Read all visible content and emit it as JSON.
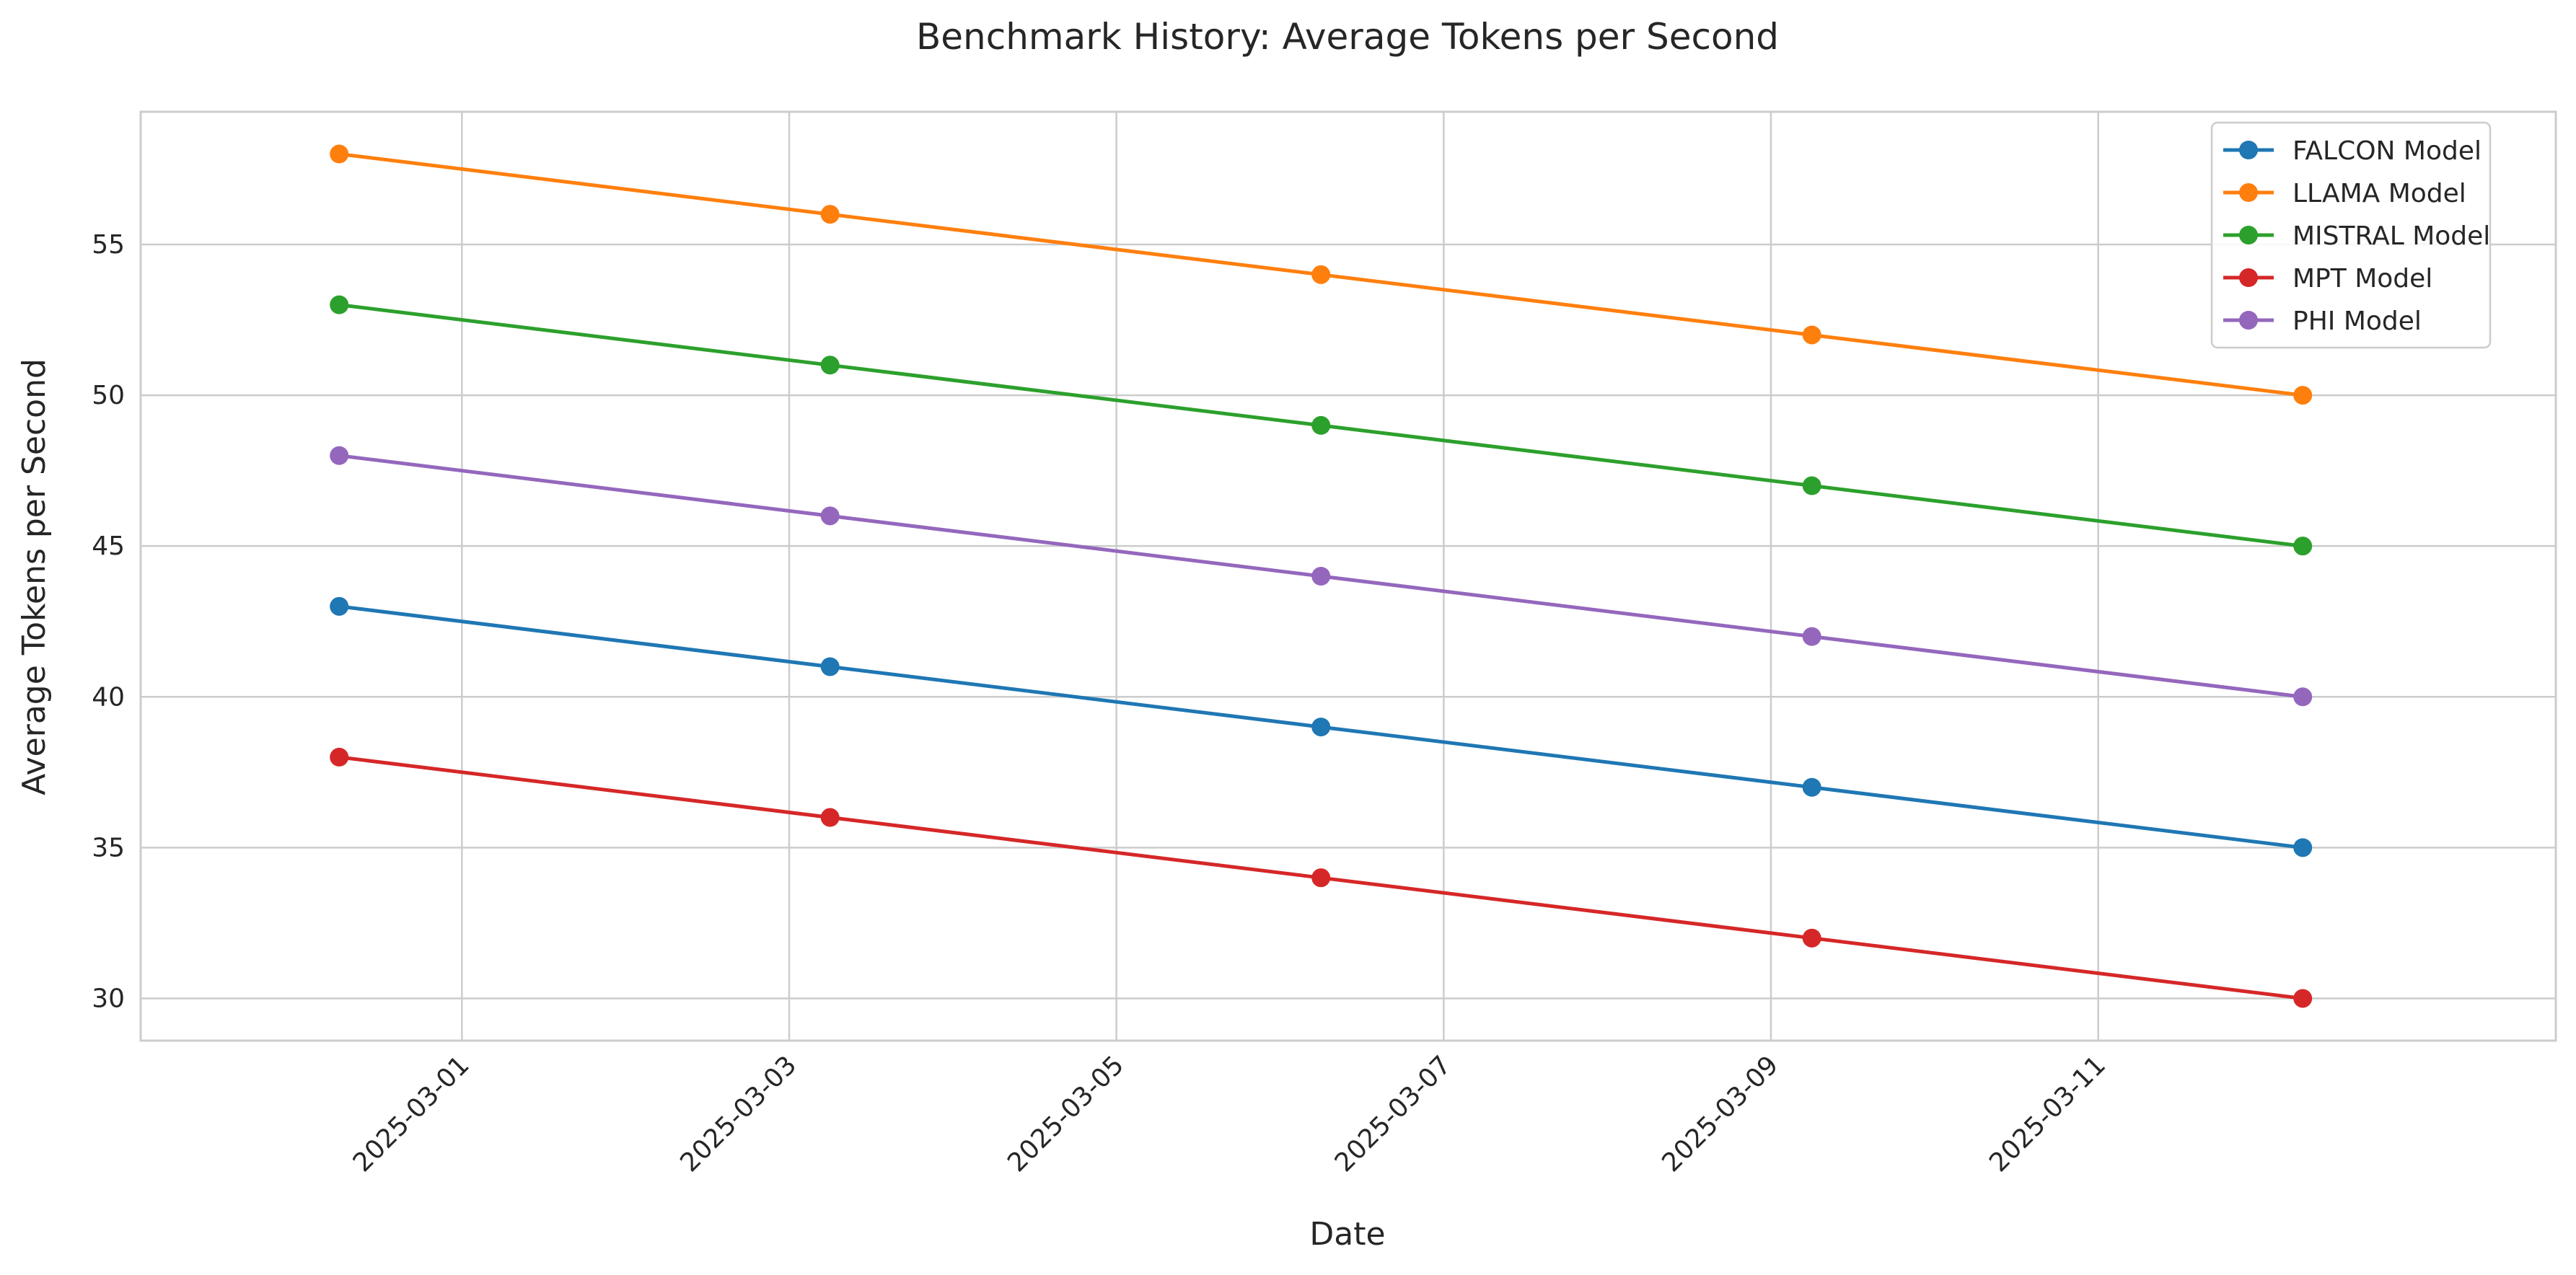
{
  "chart_data": {
    "type": "line",
    "title": "Benchmark History: Average Tokens per Second",
    "xlabel": "Date",
    "ylabel": "Average Tokens per Second",
    "x_scale": "date",
    "xlim": [
      "2025-02-27T00:53",
      "2025-03-13T19:07"
    ],
    "ylim": [
      28.6,
      59.4
    ],
    "x_ticks": [
      "2025-03-01",
      "2025-03-03",
      "2025-03-05",
      "2025-03-07",
      "2025-03-09",
      "2025-03-11"
    ],
    "y_ticks": [
      30,
      35,
      40,
      45,
      50,
      55
    ],
    "grid": true,
    "legend_position": "top-right",
    "x": [
      "2025-02-28T06:00",
      "2025-03-03T06:00",
      "2025-03-06T06:00",
      "2025-03-09T06:00",
      "2025-03-12T06:00"
    ],
    "series": [
      {
        "name": "FALCON Model",
        "color": "#1f77b4",
        "values": [
          43,
          41,
          39,
          37,
          35
        ]
      },
      {
        "name": "LLAMA Model",
        "color": "#ff7f0e",
        "values": [
          58,
          56,
          54,
          52,
          50
        ]
      },
      {
        "name": "MISTRAL Model",
        "color": "#2ca02c",
        "values": [
          53,
          51,
          49,
          47,
          45
        ]
      },
      {
        "name": "MPT Model",
        "color": "#d62728",
        "values": [
          38,
          36,
          34,
          32,
          30
        ]
      },
      {
        "name": "PHI Model",
        "color": "#9467bd",
        "values": [
          48,
          46,
          44,
          42,
          40
        ]
      }
    ]
  }
}
